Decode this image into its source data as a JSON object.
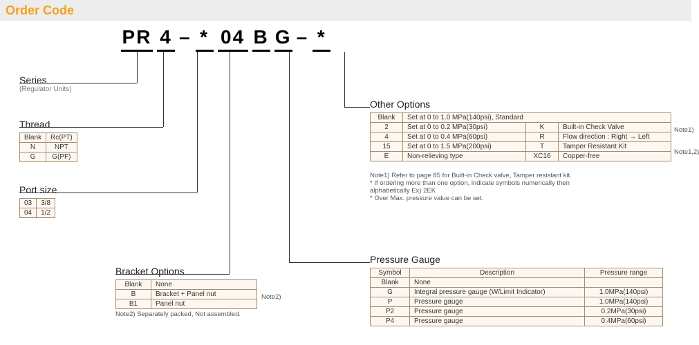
{
  "title": "Order Code",
  "code_segments": [
    "PR",
    "4",
    "–",
    "*",
    "04",
    "B",
    "G",
    "–",
    "*"
  ],
  "series": {
    "label": "Series",
    "sublabel": "(Regulator Units)"
  },
  "thread": {
    "label": "Thread",
    "rows": [
      [
        "Blank",
        "Rc(PT)"
      ],
      [
        "N",
        "NPT"
      ],
      [
        "G",
        "G(PF)"
      ]
    ]
  },
  "port": {
    "label": "Port size",
    "rows": [
      [
        "03",
        "3/8"
      ],
      [
        "04",
        "1/2"
      ]
    ]
  },
  "bracket": {
    "label": "Bracket Options",
    "rows": [
      [
        "Blank",
        "None"
      ],
      [
        "B",
        "Bracket + Panel nut"
      ],
      [
        "B1",
        "Panel nut"
      ]
    ],
    "note_tag": "Note2)",
    "note": "Note2) Separately packed, Not assembled."
  },
  "other": {
    "label": "Other Options",
    "header_row": [
      "Blank",
      "Set at 0 to 1.0 MPa(140psi), Standard"
    ],
    "rows": [
      [
        "2",
        "Set at 0 to 0.2 MPa(30psi)",
        "K",
        "Built-in Check Valve"
      ],
      [
        "4",
        "Set at 0 to 0.4 MPa(60psi)",
        "R",
        "Flow direction : Right → Left"
      ],
      [
        "15",
        "Set at 0 to 1.5 MPa(200psi)",
        "T",
        "Tamper Resistant Kit"
      ],
      [
        "E",
        "Non-relieving type",
        "XC16",
        "Copper-free"
      ]
    ],
    "side_notes": [
      "Note1)",
      "",
      "Note1,2)",
      ""
    ],
    "notes": [
      "Note1) Refer to page 85 for Built-in Check valve, Tamper resistant kit.",
      "* If ordering more than one option, indicate symbols numerically then",
      "  alphabetically Ex) 2EK",
      "* Over Max. pressure value can be set."
    ]
  },
  "gauge": {
    "label": "Pressure Gauge",
    "headers": [
      "Symbol",
      "Description",
      "Pressure range"
    ],
    "rows": [
      [
        "Blank",
        "None",
        ""
      ],
      [
        "G",
        "Integral pressure gauge (W/Limit Indicator)",
        "1.0MPa(140psi)"
      ],
      [
        "P",
        "Pressure gauge",
        "1.0MPa(140psi)"
      ],
      [
        "P2",
        "Pressure gauge",
        "0.2MPa(30psi)"
      ],
      [
        "P4",
        "Pressure gauge",
        "0.4MPa(60psi)"
      ]
    ]
  },
  "colors": {
    "accent": "#f5a11a",
    "table_border": "#a88c6c",
    "table_bg": "#fdf7f1",
    "titlebar_bg": "#ededed"
  }
}
